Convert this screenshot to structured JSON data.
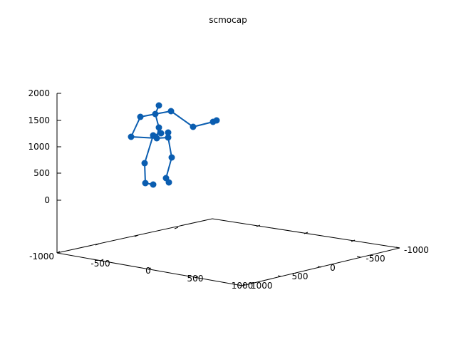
{
  "chart_data": {
    "type": "scatter",
    "title": "scmocap",
    "xlabel": "",
    "ylabel": "",
    "zlabel": "",
    "z_ticks": [
      "2000",
      "1500",
      "1000",
      "500",
      "0"
    ],
    "x_ticks": [
      "-1000",
      "-500",
      "0",
      "500",
      "1000"
    ],
    "y_ticks": [
      "1000",
      "500",
      "0",
      "-500",
      "-1000"
    ],
    "zlim": [
      0,
      2000
    ],
    "xlim": [
      -1000,
      1000
    ],
    "ylim": [
      -1000,
      1000
    ],
    "grid": false,
    "series_color": "#0a5db0",
    "joints": [
      {
        "id": "head",
        "x": 223,
        "y": 148
      },
      {
        "id": "neck",
        "x": 218,
        "y": 160
      },
      {
        "id": "l_shoulder",
        "x": 197,
        "y": 164
      },
      {
        "id": "l_elbow",
        "x": 184,
        "y": 192
      },
      {
        "id": "r_shoulder",
        "x": 240,
        "y": 156
      },
      {
        "id": "r_elbow",
        "x": 271,
        "y": 178
      },
      {
        "id": "r_wrist",
        "x": 299,
        "y": 171
      },
      {
        "id": "r_hand",
        "x": 304,
        "y": 169
      },
      {
        "id": "spine",
        "x": 223,
        "y": 179
      },
      {
        "id": "pelvis",
        "x": 220,
        "y": 194
      },
      {
        "id": "l_hip_a",
        "x": 215,
        "y": 190
      },
      {
        "id": "l_hip_b",
        "x": 226,
        "y": 187
      },
      {
        "id": "r_hip_a",
        "x": 236,
        "y": 186
      },
      {
        "id": "r_hip_b",
        "x": 236,
        "y": 193
      },
      {
        "id": "l_knee",
        "x": 203,
        "y": 229
      },
      {
        "id": "l_ankle",
        "x": 204,
        "y": 257
      },
      {
        "id": "l_toe",
        "x": 215,
        "y": 259
      },
      {
        "id": "r_knee",
        "x": 241,
        "y": 221
      },
      {
        "id": "r_ankle",
        "x": 233,
        "y": 250
      },
      {
        "id": "r_toe",
        "x": 237,
        "y": 256
      }
    ],
    "bones": [
      [
        "head",
        "neck"
      ],
      [
        "neck",
        "l_shoulder"
      ],
      [
        "l_shoulder",
        "l_elbow"
      ],
      [
        "l_elbow",
        "pelvis"
      ],
      [
        "neck",
        "r_shoulder"
      ],
      [
        "r_shoulder",
        "r_elbow"
      ],
      [
        "r_elbow",
        "r_wrist"
      ],
      [
        "r_wrist",
        "r_hand"
      ],
      [
        "neck",
        "spine"
      ],
      [
        "spine",
        "pelvis"
      ],
      [
        "pelvis",
        "l_hip_a"
      ],
      [
        "l_hip_a",
        "l_hip_b"
      ],
      [
        "pelvis",
        "r_hip_b"
      ],
      [
        "r_hip_b",
        "r_hip_a"
      ],
      [
        "l_hip_a",
        "l_knee"
      ],
      [
        "l_knee",
        "l_ankle"
      ],
      [
        "l_ankle",
        "l_toe"
      ],
      [
        "r_hip_b",
        "r_knee"
      ],
      [
        "r_knee",
        "r_ankle"
      ],
      [
        "r_ankle",
        "r_toe"
      ]
    ]
  }
}
